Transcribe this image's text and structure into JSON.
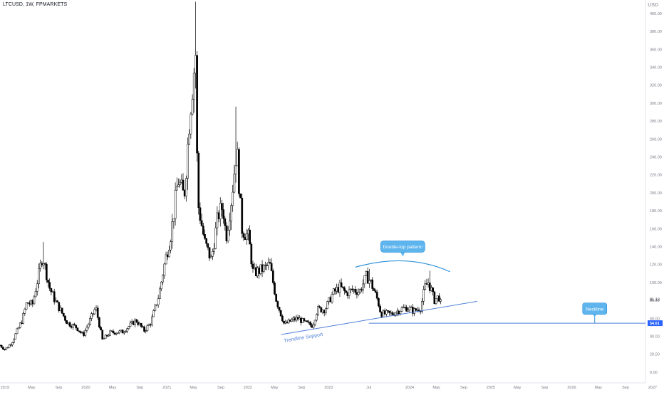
{
  "header": {
    "symbol_title": "LTCUSD, 1W, FPMARKETS",
    "currency": "USD"
  },
  "colors": {
    "candle_up": "#ffffff",
    "candle_down": "#000000",
    "wick": "#000000",
    "trendline": "#4f7fd9",
    "neckline": "#4f7fd9",
    "callout_fill": "#5eb5ee",
    "callout_stroke": "#2a8fd8",
    "price_tag": "#2962ff",
    "axis_text": "#787b86"
  },
  "chart_data": {
    "type": "candlestick",
    "title": "LTCUSD, 1W, FPMARKETS",
    "ylabel": "USD",
    "ylim": [
      -12,
      415
    ],
    "x_range": [
      "2018-12-10",
      "2026-11-30"
    ],
    "y_ticks": [
      "400.00",
      "380.00",
      "360.00",
      "340.00",
      "320.00",
      "300.00",
      "280.00",
      "260.00",
      "240.00",
      "220.00",
      "200.00",
      "180.00",
      "160.00",
      "140.00",
      "120.00",
      "100.00",
      "80.00",
      "60.00",
      "40.00",
      "20.00",
      "0.00"
    ],
    "x_ticks": [
      {
        "label": "2019",
        "date": "2019-01-01"
      },
      {
        "label": "May",
        "date": "2019-05-01"
      },
      {
        "label": "Sep",
        "date": "2019-09-01"
      },
      {
        "label": "2020",
        "date": "2020-01-01"
      },
      {
        "label": "May",
        "date": "2020-05-01"
      },
      {
        "label": "Sep",
        "date": "2020-09-01"
      },
      {
        "label": "2021",
        "date": "2021-01-01"
      },
      {
        "label": "May",
        "date": "2021-05-01"
      },
      {
        "label": "Sep",
        "date": "2021-09-01"
      },
      {
        "label": "2022",
        "date": "2022-01-01"
      },
      {
        "label": "May",
        "date": "2022-05-01"
      },
      {
        "label": "Sep",
        "date": "2022-09-01"
      },
      {
        "label": "2023",
        "date": "2023-01-01"
      },
      {
        "label": "Jul",
        "date": "2023-07-01"
      },
      {
        "label": "2024",
        "date": "2024-01-01"
      },
      {
        "label": "May",
        "date": "2024-05-01"
      },
      {
        "label": "Sep",
        "date": "2024-09-01"
      },
      {
        "label": "2025",
        "date": "2025-01-01"
      },
      {
        "label": "May",
        "date": "2025-05-01"
      },
      {
        "label": "Sep",
        "date": "2025-09-01"
      },
      {
        "label": "2026",
        "date": "2026-01-01"
      },
      {
        "label": "May",
        "date": "2026-05-01"
      },
      {
        "label": "Sep",
        "date": "2026-09-01"
      },
      {
        "label": "2027",
        "date": "2027-01-01"
      }
    ],
    "anchors": [
      {
        "date": "2018-12-10",
        "price": 30
      },
      {
        "date": "2019-01-01",
        "price": 25
      },
      {
        "date": "2019-02-01",
        "price": 33
      },
      {
        "date": "2019-03-20",
        "price": 58
      },
      {
        "date": "2019-04-10",
        "price": 78
      },
      {
        "date": "2019-05-05",
        "price": 75
      },
      {
        "date": "2019-06-20",
        "price": 130
      },
      {
        "date": "2019-07-20",
        "price": 95
      },
      {
        "date": "2019-08-15",
        "price": 80
      },
      {
        "date": "2019-10-10",
        "price": 55
      },
      {
        "date": "2019-11-20",
        "price": 50
      },
      {
        "date": "2019-12-20",
        "price": 41
      },
      {
        "date": "2020-02-15",
        "price": 72
      },
      {
        "date": "2020-03-16",
        "price": 36
      },
      {
        "date": "2020-04-20",
        "price": 44
      },
      {
        "date": "2020-06-15",
        "price": 45
      },
      {
        "date": "2020-08-15",
        "price": 58
      },
      {
        "date": "2020-09-20",
        "price": 46
      },
      {
        "date": "2020-10-20",
        "price": 55
      },
      {
        "date": "2020-11-25",
        "price": 85
      },
      {
        "date": "2020-12-25",
        "price": 125
      },
      {
        "date": "2021-01-20",
        "price": 155
      },
      {
        "date": "2021-02-20",
        "price": 215
      },
      {
        "date": "2021-03-20",
        "price": 195
      },
      {
        "date": "2021-04-15",
        "price": 290
      },
      {
        "date": "2021-05-10",
        "price": 355
      },
      {
        "date": "2021-05-20",
        "price": 190
      },
      {
        "date": "2021-06-20",
        "price": 145
      },
      {
        "date": "2021-07-20",
        "price": 125
      },
      {
        "date": "2021-08-20",
        "price": 175
      },
      {
        "date": "2021-09-10",
        "price": 185
      },
      {
        "date": "2021-09-25",
        "price": 150
      },
      {
        "date": "2021-10-20",
        "price": 195
      },
      {
        "date": "2021-11-12",
        "price": 250
      },
      {
        "date": "2021-12-05",
        "price": 160
      },
      {
        "date": "2022-01-05",
        "price": 150
      },
      {
        "date": "2022-01-25",
        "price": 110
      },
      {
        "date": "2022-03-10",
        "price": 115
      },
      {
        "date": "2022-04-10",
        "price": 120
      },
      {
        "date": "2022-05-10",
        "price": 80
      },
      {
        "date": "2022-06-15",
        "price": 53
      },
      {
        "date": "2022-07-20",
        "price": 58
      },
      {
        "date": "2022-08-15",
        "price": 60
      },
      {
        "date": "2022-09-15",
        "price": 55
      },
      {
        "date": "2022-10-20",
        "price": 52
      },
      {
        "date": "2022-11-10",
        "price": 70
      },
      {
        "date": "2022-12-15",
        "price": 70
      },
      {
        "date": "2023-01-20",
        "price": 88
      },
      {
        "date": "2023-02-20",
        "price": 95
      },
      {
        "date": "2023-03-20",
        "price": 88
      },
      {
        "date": "2023-04-20",
        "price": 92
      },
      {
        "date": "2023-05-20",
        "price": 90
      },
      {
        "date": "2023-06-20",
        "price": 107
      },
      {
        "date": "2023-07-10",
        "price": 100
      },
      {
        "date": "2023-08-10",
        "price": 80
      },
      {
        "date": "2023-08-25",
        "price": 65
      },
      {
        "date": "2023-10-15",
        "price": 65
      },
      {
        "date": "2023-11-20",
        "price": 70
      },
      {
        "date": "2023-12-20",
        "price": 72
      },
      {
        "date": "2024-01-20",
        "price": 68
      },
      {
        "date": "2024-02-20",
        "price": 72
      },
      {
        "date": "2024-03-10",
        "price": 95
      },
      {
        "date": "2024-03-25",
        "price": 100
      },
      {
        "date": "2024-04-10",
        "price": 90
      },
      {
        "date": "2024-04-20",
        "price": 80
      },
      {
        "date": "2024-05-10",
        "price": 84
      },
      {
        "date": "2024-05-25",
        "price": 81.13
      }
    ],
    "spikes": [
      {
        "date": "2019-06-23",
        "high": 145
      },
      {
        "date": "2021-05-09",
        "high": 413
      },
      {
        "date": "2021-11-07",
        "high": 296
      },
      {
        "date": "2022-01-02",
        "high": 160
      },
      {
        "date": "2023-07-02",
        "high": 115
      },
      {
        "date": "2024-04-01",
        "high": 113
      }
    ],
    "current_price": "81.13",
    "annotations": [
      {
        "id": "double-top",
        "type": "callout",
        "text": "Double-top pattern!",
        "date": "2023-12-01",
        "price": 140
      },
      {
        "id": "double-top-arc",
        "type": "arc",
        "start": {
          "date": "2023-05-01",
          "price": 117
        },
        "peak": {
          "date": "2023-12-20",
          "price": 124
        },
        "end": {
          "date": "2024-07-01",
          "price": 112
        }
      },
      {
        "id": "trendline",
        "type": "line",
        "text": "Trendline Support",
        "start": {
          "date": "2022-06-01",
          "price": 42
        },
        "end": {
          "date": "2024-11-01",
          "price": 79
        }
      },
      {
        "id": "neckline",
        "type": "hline",
        "text": "Neckline",
        "price": 54.61,
        "from": "2023-07-01",
        "label_date": "2026-04-15",
        "label_price": 70
      }
    ],
    "neckline_price_label": "54.61",
    "grid": false,
    "legend": "none"
  }
}
